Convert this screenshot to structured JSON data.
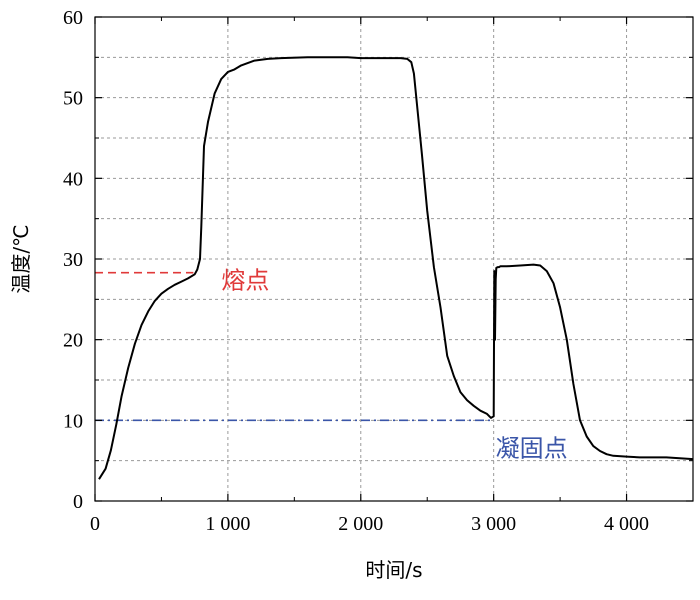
{
  "chart_data": {
    "type": "line",
    "title": "",
    "xlabel": "时间/s",
    "ylabel": "温度/℃",
    "xlim": [
      0,
      4500
    ],
    "ylim": [
      0,
      60
    ],
    "x_ticks": [
      0,
      1000,
      2000,
      3000,
      4000
    ],
    "x_tick_labels": [
      "0",
      "1 000",
      "2 000",
      "3 000",
      "4 000"
    ],
    "y_ticks": [
      0,
      10,
      20,
      30,
      40,
      50,
      60
    ],
    "y_tick_labels": [
      "0",
      "10",
      "20",
      "30",
      "40",
      "50",
      "60"
    ],
    "grid": true,
    "series": [
      {
        "color": "#000000",
        "x": [
          30,
          80,
          120,
          160,
          200,
          250,
          300,
          350,
          400,
          450,
          500,
          550,
          600,
          650,
          700,
          750,
          770,
          790,
          800,
          820,
          850,
          900,
          950,
          1000,
          1050,
          1100,
          1200,
          1300,
          1400,
          1600,
          1800,
          1900,
          2000,
          2100,
          2200,
          2300,
          2350,
          2380,
          2400,
          2430,
          2460,
          2500,
          2550,
          2600,
          2650,
          2700,
          2750,
          2800,
          2850,
          2900,
          2950,
          2980,
          3000,
          3005,
          3010,
          3015,
          3020,
          3030,
          3040,
          3050,
          3100,
          3200,
          3300,
          3350,
          3400,
          3450,
          3500,
          3550,
          3600,
          3650,
          3700,
          3750,
          3800,
          3850,
          3900,
          4000,
          4100,
          4200,
          4300,
          4400,
          4500
        ],
        "y": [
          2.7,
          4.0,
          6.3,
          9.5,
          13.0,
          16.5,
          19.5,
          21.8,
          23.5,
          24.8,
          25.7,
          26.3,
          26.8,
          27.2,
          27.6,
          28.1,
          28.7,
          30.0,
          34.0,
          44.0,
          47.0,
          50.5,
          52.3,
          53.2,
          53.5,
          54.0,
          54.6,
          54.8,
          54.9,
          55.0,
          55.0,
          55.0,
          54.9,
          54.9,
          54.9,
          54.9,
          54.8,
          54.4,
          53.0,
          48.0,
          43.0,
          36.0,
          29.0,
          24.0,
          18.0,
          15.5,
          13.5,
          12.5,
          11.8,
          11.2,
          10.8,
          10.3,
          10.5,
          28.5,
          20.0,
          27.5,
          28.9,
          29.0,
          29.0,
          29.1,
          29.1,
          29.2,
          29.3,
          29.2,
          28.5,
          27.0,
          24.0,
          20.0,
          14.5,
          10.0,
          8.0,
          6.8,
          6.2,
          5.8,
          5.6,
          5.5,
          5.4,
          5.4,
          5.4,
          5.3,
          5.2
        ]
      }
    ],
    "reference_lines": [
      {
        "label": "熔点",
        "y": 28.3,
        "x_start": 0,
        "x_end": 740,
        "color": "#e03a3a",
        "dash": "dash"
      },
      {
        "label": "凝固点",
        "y": 10.0,
        "x_start": 0,
        "x_end": 3000,
        "color": "#3a55a8",
        "dash": "dashdot"
      }
    ]
  }
}
